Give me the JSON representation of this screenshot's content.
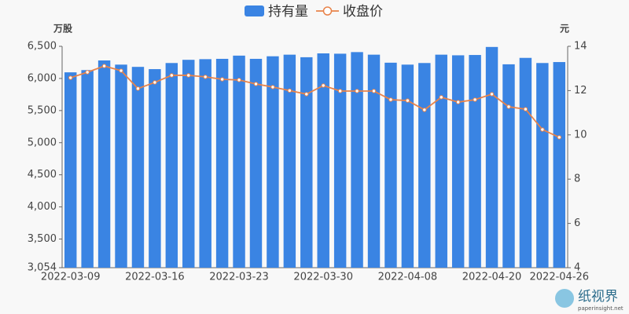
{
  "chart_data": {
    "type": "bar_line",
    "y_axis_label": "万股",
    "y2_axis_label": "元",
    "categories": [
      "2022-03-09",
      null,
      null,
      null,
      null,
      "2022-03-16",
      null,
      null,
      null,
      null,
      "2022-03-23",
      null,
      null,
      null,
      null,
      "2022-03-30",
      null,
      null,
      null,
      null,
      "2022-04-08",
      null,
      null,
      null,
      null,
      "2022-04-20",
      null,
      null,
      null,
      "2022-04-26"
    ],
    "series": [
      {
        "name": "持有量",
        "type": "bar",
        "color": "#3a84e3",
        "values": [
          6095,
          6130,
          6280,
          6215,
          6180,
          6145,
          6240,
          6290,
          6300,
          6305,
          6355,
          6305,
          6345,
          6370,
          6330,
          6390,
          6385,
          6410,
          6370,
          6245,
          6215,
          6240,
          6370,
          6360,
          6365,
          6490,
          6220,
          6320,
          6240,
          6255
        ]
      },
      {
        "name": "收盘价",
        "type": "line",
        "axis": "y2",
        "color": "#e8834a",
        "values": [
          12.58,
          12.83,
          13.11,
          12.9,
          12.09,
          12.37,
          12.69,
          12.69,
          12.62,
          12.51,
          12.48,
          12.3,
          12.16,
          12.0,
          11.84,
          12.23,
          11.98,
          11.98,
          11.98,
          11.59,
          11.55,
          11.13,
          11.7,
          11.48,
          11.59,
          11.84,
          11.27,
          11.16,
          10.24,
          9.89
        ]
      }
    ],
    "ylim": [
      3054,
      6500
    ],
    "yticks": [
      {
        "value": 3054,
        "label": "3,054"
      },
      {
        "value": 3500,
        "label": "3,500"
      },
      {
        "value": 4000,
        "label": "4,000"
      },
      {
        "value": 4500,
        "label": "4,500"
      },
      {
        "value": 5000,
        "label": "5,000"
      },
      {
        "value": 5500,
        "label": "5,500"
      },
      {
        "value": 6000,
        "label": "6,000"
      },
      {
        "value": 6500,
        "label": "6,500"
      }
    ],
    "y2lim": [
      4,
      14
    ],
    "y2ticks": [
      4,
      6,
      8,
      10,
      12,
      14
    ],
    "grid": false,
    "legend": "top"
  },
  "watermark": {
    "name": "纸视界",
    "url": "paperinsight.net"
  }
}
